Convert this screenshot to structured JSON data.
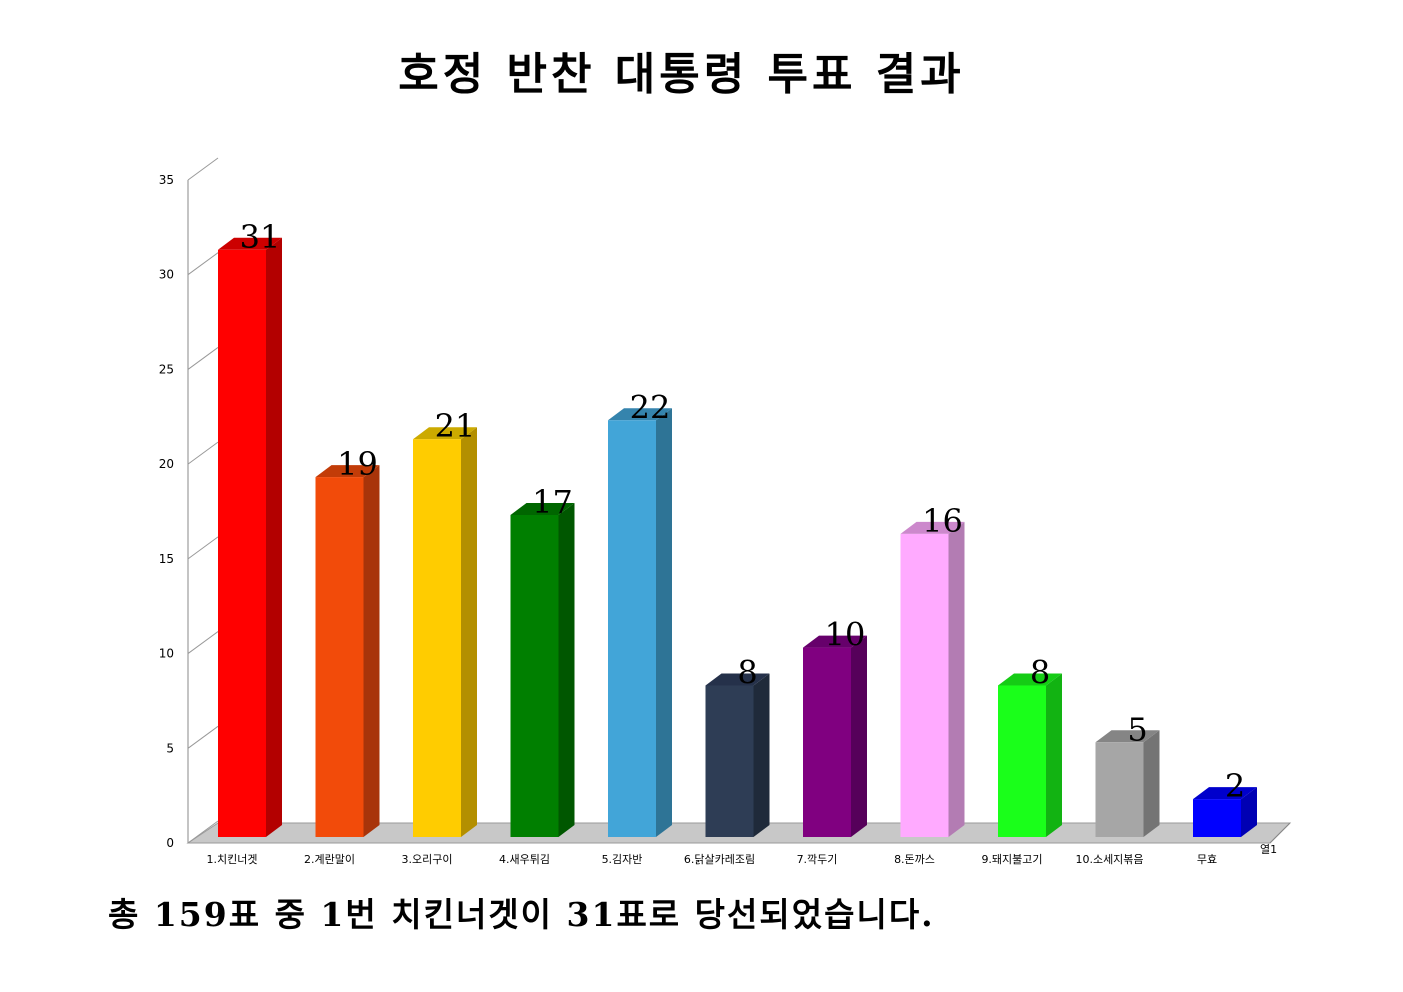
{
  "chart_data": {
    "type": "bar",
    "title": "호정 반찬 대통령 투표 결과",
    "categories": [
      "1.치킨너겟",
      "2.계란말이",
      "3.오리구이",
      "4.새우튀김",
      "5.김자반",
      "6.닭살카레조림",
      "7.깍두기",
      "8.돈까스",
      "9.돼지불고기",
      "10.소세지볶음",
      "무효"
    ],
    "series": [
      {
        "name": "열1",
        "values": [
          31,
          19,
          21,
          17,
          22,
          8,
          10,
          16,
          8,
          5,
          2
        ]
      }
    ],
    "bar_colors": [
      "#ff0000",
      "#f24b0a",
      "#ffcc00",
      "#007f00",
      "#42a5d8",
      "#2e3d55",
      "#800080",
      "#ffaaff",
      "#1aff1a",
      "#a6a6a6",
      "#0000ff"
    ],
    "bar_side_colors": [
      "#b30000",
      "#a8340a",
      "#b38f00",
      "#005700",
      "#2e7496",
      "#1f2a3a",
      "#56005a",
      "#b37cb3",
      "#12b312",
      "#747474",
      "#0000b3"
    ],
    "bar_top_colors": [
      "#cc0000",
      "#c23c08",
      "#ccaa00",
      "#006600",
      "#3584ad",
      "#25314a",
      "#66006b",
      "#cc88cc",
      "#15cc15",
      "#858585",
      "#0000cc"
    ],
    "ylim": [
      0,
      35
    ],
    "yticks": [
      0,
      5,
      10,
      15,
      20,
      25,
      30,
      35
    ],
    "xlabel": "",
    "ylabel": "",
    "data_labels": true,
    "style": "3d-column"
  },
  "summary": "총 159표 중 1번 치킨너겟이 31표로 당선되었습니다."
}
